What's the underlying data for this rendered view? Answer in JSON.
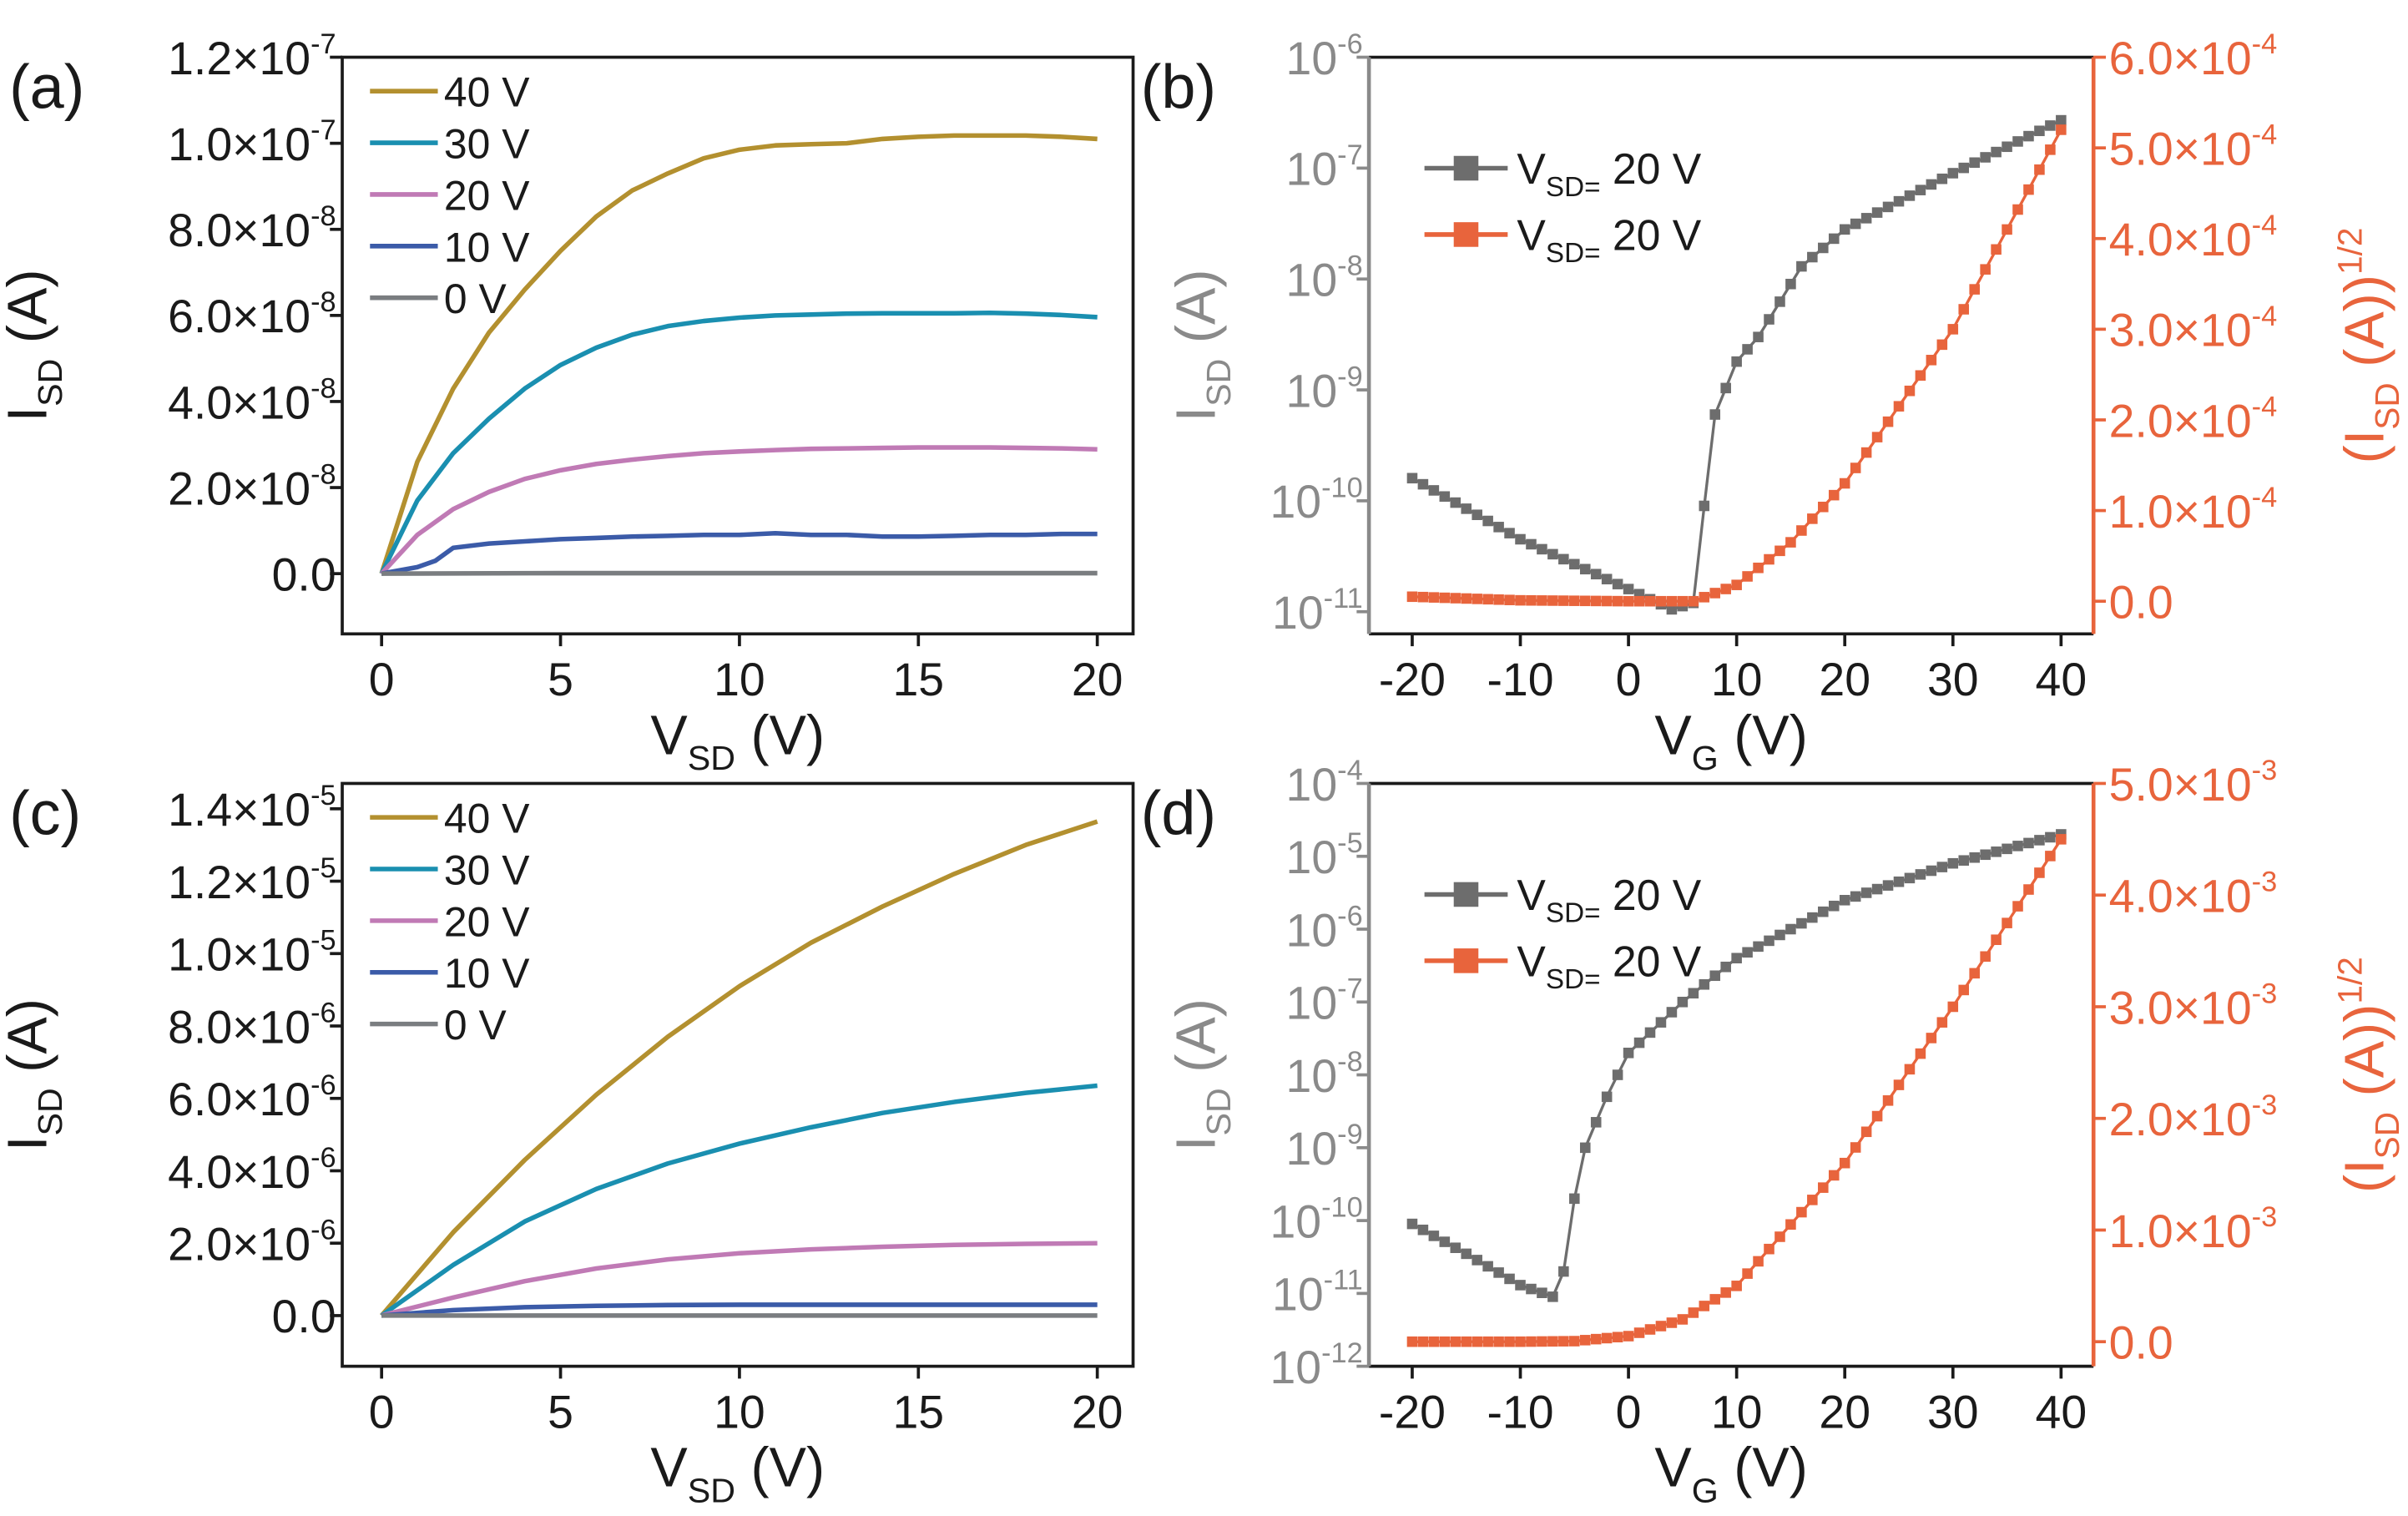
{
  "chart_data": [
    {
      "panel": "(a)",
      "type": "line",
      "xlabel": "V_SD (V)",
      "ylabel": "I_SD (A)",
      "xlim": [
        -1.1,
        21
      ],
      "ylim": [
        -1.4e-08,
        1.2e-07
      ],
      "xticks": [
        0,
        5,
        10,
        15,
        20
      ],
      "yticks": [
        0,
        2e-08,
        4e-08,
        6e-08,
        8e-08,
        1e-07,
        1.2e-07
      ],
      "ytick_labels": [
        {
          "m": "0.0",
          "e": ""
        },
        {
          "m": "2.0×10",
          "e": "-8"
        },
        {
          "m": "4.0×10",
          "e": "-8"
        },
        {
          "m": "6.0×10",
          "e": "-8"
        },
        {
          "m": "8.0×10",
          "e": "-8"
        },
        {
          "m": "1.0×10",
          "e": "-7"
        },
        {
          "m": "1.2×10",
          "e": "-7"
        }
      ],
      "legend": {
        "position": "top-left"
      },
      "series": [
        {
          "name": "40 V",
          "color": "#b3902f",
          "x": [
            0,
            1,
            2,
            3,
            4,
            5,
            6,
            7,
            8,
            9,
            10,
            11,
            12,
            13,
            14,
            15,
            16,
            17,
            18,
            19,
            20
          ],
          "y": [
            0,
            2.6e-08,
            4.3e-08,
            5.6e-08,
            6.6e-08,
            7.5e-08,
            8.3e-08,
            8.9e-08,
            9.3e-08,
            9.65e-08,
            9.85e-08,
            9.95e-08,
            9.98e-08,
            1e-07,
            1.01e-07,
            1.015e-07,
            1.018e-07,
            1.018e-07,
            1.018e-07,
            1.015e-07,
            1.01e-07
          ]
        },
        {
          "name": "30 V",
          "color": "#1a8fb0",
          "x": [
            0,
            1,
            2,
            3,
            4,
            5,
            6,
            7,
            8,
            9,
            10,
            11,
            12,
            13,
            14,
            15,
            16,
            17,
            18,
            19,
            20
          ],
          "y": [
            0,
            1.7e-08,
            2.8e-08,
            3.6e-08,
            4.3e-08,
            4.85e-08,
            5.25e-08,
            5.55e-08,
            5.75e-08,
            5.87e-08,
            5.95e-08,
            6e-08,
            6.02e-08,
            6.04e-08,
            6.05e-08,
            6.05e-08,
            6.05e-08,
            6.06e-08,
            6.04e-08,
            6.01e-08,
            5.96e-08
          ]
        },
        {
          "name": "20 V",
          "color": "#c07ab5",
          "x": [
            0,
            1,
            2,
            3,
            4,
            5,
            6,
            7,
            8,
            9,
            10,
            11,
            12,
            13,
            14,
            15,
            16,
            17,
            18,
            19,
            20
          ],
          "y": [
            0,
            9e-09,
            1.5e-08,
            1.9e-08,
            2.2e-08,
            2.4e-08,
            2.55e-08,
            2.65e-08,
            2.73e-08,
            2.8e-08,
            2.84e-08,
            2.87e-08,
            2.9e-08,
            2.91e-08,
            2.92e-08,
            2.93e-08,
            2.93e-08,
            2.93e-08,
            2.92e-08,
            2.91e-08,
            2.89e-08
          ]
        },
        {
          "name": "10 V",
          "color": "#3b5ba8",
          "x": [
            0,
            1,
            1.5,
            2,
            3,
            4,
            5,
            6,
            7,
            8,
            9,
            10,
            11,
            12,
            13,
            14,
            15,
            16,
            17,
            18,
            19,
            20
          ],
          "y": [
            0,
            1.5e-09,
            3e-09,
            6e-09,
            7e-09,
            7.5e-09,
            8e-09,
            8.3e-09,
            8.6e-09,
            8.8e-09,
            9e-09,
            9e-09,
            9.4e-09,
            9e-09,
            9e-09,
            8.6e-09,
            8.6e-09,
            8.8e-09,
            9e-09,
            9e-09,
            9.2e-09,
            9.2e-09
          ]
        },
        {
          "name": "0 V",
          "color": "#7a7d80",
          "x": [
            0,
            5,
            10,
            15,
            20
          ],
          "y": [
            0,
            1e-10,
            1e-10,
            1e-10,
            1e-10
          ]
        }
      ]
    },
    {
      "panel": "(b)",
      "type": "scatter",
      "xlabel": "V_G (V)",
      "ylabel": "I_SD (A)",
      "y2label": "(I_SD (A))^1/2",
      "xlim": [
        -24,
        43
      ],
      "ylim_log": [
        -11.2,
        -6
      ],
      "y2lim": [
        -3.6e-05,
        0.0006
      ],
      "xticks": [
        -20,
        -10,
        0,
        10,
        20,
        30,
        40
      ],
      "yticks_exp": [
        "-11",
        "-10",
        "-9",
        "-8",
        "-7",
        "-6"
      ],
      "y2ticks": [
        0,
        0.0001,
        0.0002,
        0.0003,
        0.0004,
        0.0005,
        0.0006
      ],
      "y2tick_labels": [
        {
          "m": "0.0",
          "e": ""
        },
        {
          "m": "1.0×10",
          "e": "-4"
        },
        {
          "m": "2.0×10",
          "e": "-4"
        },
        {
          "m": "3.0×10",
          "e": "-4"
        },
        {
          "m": "4.0×10",
          "e": "-4"
        },
        {
          "m": "5.0×10",
          "e": "-4"
        },
        {
          "m": "6.0×10",
          "e": "-4"
        }
      ],
      "legend": {
        "position": "top-left"
      },
      "series": [
        {
          "name": "V_SD= 20 V",
          "axis": "left-log",
          "color": "#6d6d6d",
          "knots": [
            [
              -20,
              1.6e-10
            ],
            [
              -10,
              4.5e-11
            ],
            [
              0,
              1.6e-11
            ],
            [
              4,
              1.05e-11
            ],
            [
              6,
              1.2e-11
            ],
            [
              7,
              9e-11
            ],
            [
              8,
              6e-10
            ],
            [
              10,
              1.8e-09
            ],
            [
              12,
              3e-09
            ],
            [
              16,
              1.3e-08
            ],
            [
              20,
              2.8e-08
            ],
            [
              30,
              9e-08
            ],
            [
              40,
              2.7e-07
            ]
          ]
        },
        {
          "name": "V_SD= 20 V",
          "axis": "right",
          "color": "#e8643c",
          "knots": [
            [
              -20,
              5e-06
            ],
            [
              -10,
              1e-06
            ],
            [
              0,
              0
            ],
            [
              6,
              0
            ],
            [
              10,
              1.8e-05
            ],
            [
              15,
              6.5e-05
            ],
            [
              20,
              0.00013
            ],
            [
              30,
              0.0003
            ],
            [
              40,
              0.00052
            ]
          ]
        }
      ]
    },
    {
      "panel": "(c)",
      "type": "line",
      "xlabel": "V_SD (V)",
      "ylabel": "I_SD (A)",
      "xlim": [
        -1.1,
        21
      ],
      "ylim": [
        -1.4e-06,
        1.47e-05
      ],
      "xticks": [
        0,
        5,
        10,
        15,
        20
      ],
      "yticks": [
        0,
        2e-06,
        4e-06,
        6e-06,
        8e-06,
        1e-05,
        1.2e-05,
        1.4e-05
      ],
      "ytick_labels": [
        {
          "m": "0.0",
          "e": ""
        },
        {
          "m": "2.0×10",
          "e": "-6"
        },
        {
          "m": "4.0×10",
          "e": "-6"
        },
        {
          "m": "6.0×10",
          "e": "-6"
        },
        {
          "m": "8.0×10",
          "e": "-6"
        },
        {
          "m": "1.0×10",
          "e": "-5"
        },
        {
          "m": "1.2×10",
          "e": "-5"
        },
        {
          "m": "1.4×10",
          "e": "-5"
        }
      ],
      "legend": {
        "position": "top-left"
      },
      "series": [
        {
          "name": "40 V",
          "color": "#b3902f",
          "x": [
            0,
            2,
            4,
            6,
            8,
            10,
            12,
            14,
            16,
            18,
            20
          ],
          "y": [
            0,
            2.3e-06,
            4.3e-06,
            6.1e-06,
            7.7e-06,
            9.1e-06,
            1.03e-05,
            1.13e-05,
            1.22e-05,
            1.3e-05,
            1.365e-05
          ]
        },
        {
          "name": "30 V",
          "color": "#1a8fb0",
          "x": [
            0,
            2,
            4,
            6,
            8,
            10,
            12,
            14,
            16,
            18,
            20
          ],
          "y": [
            0,
            1.4e-06,
            2.6e-06,
            3.5e-06,
            4.2e-06,
            4.75e-06,
            5.2e-06,
            5.6e-06,
            5.9e-06,
            6.15e-06,
            6.35e-06
          ]
        },
        {
          "name": "20 V",
          "color": "#c07ab5",
          "x": [
            0,
            2,
            4,
            6,
            8,
            10,
            12,
            14,
            16,
            18,
            20
          ],
          "y": [
            0,
            5e-07,
            9.5e-07,
            1.3e-06,
            1.55e-06,
            1.72e-06,
            1.83e-06,
            1.9e-06,
            1.95e-06,
            1.98e-06,
            2e-06
          ]
        },
        {
          "name": "10 V",
          "color": "#3b5ba8",
          "x": [
            0,
            2,
            4,
            6,
            8,
            10,
            12,
            14,
            16,
            18,
            20
          ],
          "y": [
            0,
            1.5e-07,
            2.3e-07,
            2.7e-07,
            2.9e-07,
            3e-07,
            3e-07,
            3e-07,
            3e-07,
            3e-07,
            3e-07
          ]
        },
        {
          "name": "0 V",
          "color": "#7a7d80",
          "x": [
            0,
            20
          ],
          "y": [
            0,
            0
          ]
        }
      ]
    },
    {
      "panel": "(d)",
      "type": "scatter",
      "xlabel": "V_G (V)",
      "ylabel": "I_SD (A)",
      "y2label": "(I_SD (A))^1/2",
      "xlim": [
        -24,
        43
      ],
      "ylim_log": [
        -12,
        -4
      ],
      "y2lim": [
        -0.00022,
        0.005
      ],
      "xticks": [
        -20,
        -10,
        0,
        10,
        20,
        30,
        40
      ],
      "yticks_exp": [
        "-12",
        "-11",
        "-10",
        "-9",
        "-8",
        "-7",
        "-6",
        "-5",
        "-4"
      ],
      "y2ticks": [
        0,
        0.001,
        0.002,
        0.003,
        0.004,
        0.005
      ],
      "y2tick_labels": [
        {
          "m": "0.0",
          "e": ""
        },
        {
          "m": "1.0×10",
          "e": "-3"
        },
        {
          "m": "2.0×10",
          "e": "-3"
        },
        {
          "m": "3.0×10",
          "e": "-3"
        },
        {
          "m": "4.0×10",
          "e": "-3"
        },
        {
          "m": "5.0×10",
          "e": "-3"
        }
      ],
      "legend": {
        "position": "top-left"
      },
      "series": [
        {
          "name": "V_SD= 20 V",
          "axis": "left-log",
          "color": "#6d6d6d",
          "knots": [
            [
              -20,
              9e-11
            ],
            [
              -15,
              3.5e-11
            ],
            [
              -10,
              1.3e-11
            ],
            [
              -7,
              9e-12
            ],
            [
              -6,
              2e-11
            ],
            [
              -5,
              2e-10
            ],
            [
              -4,
              1e-09
            ],
            [
              -2,
              5e-09
            ],
            [
              0,
              2e-08
            ],
            [
              5,
              1e-07
            ],
            [
              10,
              4e-07
            ],
            [
              20,
              2.5e-06
            ],
            [
              30,
              8e-06
            ],
            [
              40,
              2e-05
            ]
          ]
        },
        {
          "name": "V_SD= 20 V",
          "axis": "right",
          "color": "#e8643c",
          "knots": [
            [
              -20,
              0
            ],
            [
              -10,
              0
            ],
            [
              -5,
              5e-06
            ],
            [
              0,
              5e-05
            ],
            [
              5,
              0.0002
            ],
            [
              10,
              0.0005
            ],
            [
              20,
              0.0016
            ],
            [
              30,
              0.003
            ],
            [
              40,
              0.0045
            ]
          ]
        }
      ]
    }
  ]
}
